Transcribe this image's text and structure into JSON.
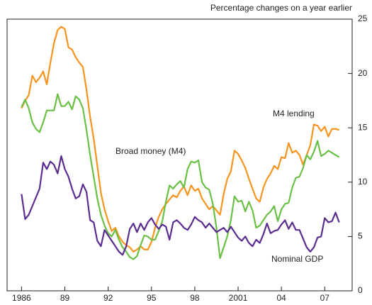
{
  "chart_data": {
    "type": "line",
    "subtitle": "Percentage changes on a year earlier",
    "annotations": [
      "M4 lending",
      "Broad money (M4)",
      "Nominal GDP"
    ],
    "x": [
      1986,
      1986.25,
      1986.5,
      1986.75,
      1987,
      1987.25,
      1987.5,
      1987.75,
      1988,
      1988.25,
      1988.5,
      1988.75,
      1989,
      1989.25,
      1989.5,
      1989.75,
      1990,
      1990.25,
      1990.5,
      1990.75,
      1991,
      1991.25,
      1991.5,
      1991.75,
      1992,
      1992.25,
      1992.5,
      1992.75,
      1993,
      1993.25,
      1993.5,
      1993.75,
      1994,
      1994.25,
      1994.5,
      1994.75,
      1995,
      1995.25,
      1995.5,
      1995.75,
      1996,
      1996.25,
      1996.5,
      1996.75,
      1997,
      1997.25,
      1997.5,
      1997.75,
      1998,
      1998.25,
      1998.5,
      1998.75,
      1999,
      1999.25,
      1999.5,
      1999.75,
      2000,
      2000.25,
      2000.5,
      2000.75,
      2001,
      2001.25,
      2001.5,
      2001.75,
      2002,
      2002.25,
      2002.5,
      2002.75,
      2003,
      2003.25,
      2003.5,
      2003.75,
      2004,
      2004.25,
      2004.5,
      2004.75,
      2005,
      2005.25,
      2005.5,
      2005.75,
      2006,
      2006.25,
      2006.5,
      2006.75,
      2007,
      2007.25,
      2007.5,
      2007.75,
      2008
    ],
    "series": [
      {
        "name": "M4 lending",
        "color": "#f7941d",
        "values": [
          16.8,
          17.5,
          18,
          19.8,
          19.2,
          19.6,
          20.2,
          19,
          21,
          22.8,
          24,
          24.3,
          24.1,
          22.4,
          22.2,
          21.5,
          21,
          20.6,
          18.5,
          16,
          14,
          11.5,
          9,
          7.5,
          6.4,
          5.5,
          5.8,
          5,
          4.5,
          4.2,
          4,
          3.6,
          3.8,
          4.1,
          3.8,
          3.8,
          4.5,
          5.8,
          6.8,
          7.5,
          8,
          8.4,
          8.8,
          8.6,
          9.2,
          9.6,
          8.8,
          9.7,
          9.2,
          9.4,
          8.5,
          8,
          7.5,
          7.8,
          7.4,
          7,
          8.9,
          10.3,
          11,
          12.9,
          12.6,
          12,
          11.3,
          10.3,
          9.4,
          8.5,
          8.2,
          9.5,
          10.3,
          10.8,
          11.5,
          11.2,
          12.3,
          12.2,
          13.6,
          12.7,
          12.9,
          12.5,
          11.6,
          12.5,
          13.4,
          15.3,
          15.2,
          14.7,
          15.1,
          14.2,
          14.9,
          14.9,
          14.8
        ]
      },
      {
        "name": "Broad money (M4)",
        "color": "#6abf45",
        "values": [
          16.9,
          17.6,
          16.8,
          15.5,
          14.9,
          14.6,
          15.5,
          16.6,
          16.6,
          16.6,
          18.1,
          17,
          17,
          17.4,
          16.7,
          17.9,
          17.6,
          16.8,
          14.8,
          12.5,
          10.5,
          8.5,
          7,
          6,
          5.3,
          5,
          5.6,
          4.7,
          4,
          3.6,
          3.1,
          2.9,
          3.2,
          4.2,
          5.1,
          5,
          4.7,
          4.7,
          5.5,
          6.4,
          8.2,
          9.7,
          9.4,
          9.8,
          10.1,
          9.5,
          11.2,
          11.9,
          11.8,
          12,
          10,
          9.5,
          9.3,
          8,
          5.8,
          3,
          4,
          5,
          6.5,
          8.7,
          8.2,
          8.3,
          7.3,
          8.2,
          7.4,
          5.8,
          6,
          6.5,
          7,
          7.3,
          7.8,
          6.4,
          7.5,
          8,
          8.1,
          9.5,
          10.4,
          10.5,
          11.3,
          12.5,
          12.1,
          12.8,
          13.8,
          12.4,
          12.6,
          12.9,
          12.7,
          12.5,
          12.3
        ]
      },
      {
        "name": "Nominal GDP",
        "color": "#5b2c8f",
        "values": [
          8.9,
          6.6,
          7,
          7.8,
          8.6,
          9.4,
          11.8,
          11.2,
          11.9,
          11.6,
          10.8,
          12.4,
          11.2,
          10.5,
          9.4,
          8.5,
          8.7,
          9.8,
          9.1,
          6.5,
          6.3,
          4.6,
          4.1,
          5.6,
          5.1,
          4.6,
          4.1,
          3.6,
          3.3,
          4.1,
          5.7,
          6.2,
          5.4,
          6.2,
          5.6,
          6.3,
          6.7,
          6.1,
          5.7,
          6.1,
          5.9,
          4.7,
          6.3,
          6.5,
          6.2,
          5.8,
          5.6,
          6.1,
          6.8,
          6.5,
          6.3,
          5.8,
          6.2,
          5.8,
          5.4,
          5.6,
          5.8,
          5.4,
          5.9,
          5.4,
          4.9,
          4.6,
          5,
          4.4,
          4.1,
          4.7,
          4.4,
          5.2,
          6.2,
          5.3,
          5.5,
          5.6,
          6.1,
          6.5,
          5.7,
          6.3,
          5.6,
          5.6,
          4.8,
          4,
          3.6,
          4,
          4.9,
          5,
          6.7,
          6.3,
          6.4,
          7.2,
          6.3
        ]
      }
    ],
    "xlim": [
      1985,
      2008.9
    ],
    "xticks": [
      1986,
      {
        "value": 1989,
        "label": "89"
      },
      {
        "value": 1992,
        "label": "92"
      },
      {
        "value": 1995,
        "label": "95"
      },
      {
        "value": 1998,
        "label": "98"
      },
      2001,
      {
        "value": 2004,
        "label": "04"
      },
      {
        "value": 2007,
        "label": "07"
      }
    ],
    "ylim": [
      0,
      25
    ],
    "yticks": [
      0,
      5,
      10,
      15,
      20,
      25
    ]
  }
}
